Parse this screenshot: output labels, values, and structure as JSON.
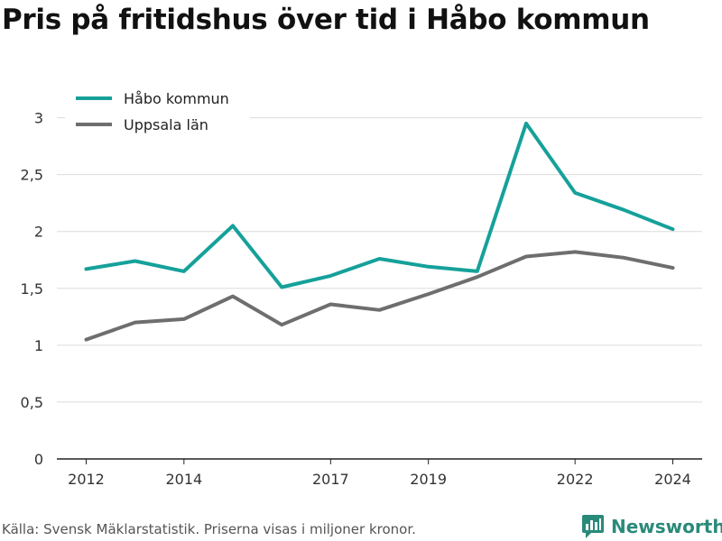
{
  "title": "Pris på fritidshus över tid i Håbo kommun",
  "source_note": "Källa: Svensk Mäklarstatistik. Priserna visas i miljoner kronor.",
  "brand": {
    "name": "Newsworthy",
    "icon": "newsworthy-bar-chart-logo-icon"
  },
  "chart_data": {
    "type": "line",
    "title": "Pris på fritidshus över tid i Håbo kommun",
    "xlabel": "",
    "ylabel": "",
    "x": [
      2012,
      2013,
      2014,
      2015,
      2016,
      2017,
      2018,
      2019,
      2020,
      2021,
      2022,
      2023,
      2024
    ],
    "x_tick_values": [
      2012,
      2014,
      2017,
      2019,
      2022,
      2024
    ],
    "x_tick_labels": [
      "2012",
      "2014",
      "2017",
      "2019",
      "2022",
      "2024"
    ],
    "xlim": [
      2011.4,
      2024.6
    ],
    "y_tick_values": [
      0,
      0.5,
      1,
      1.5,
      2,
      2.5,
      3
    ],
    "y_tick_labels": [
      "0",
      "0,5",
      "1",
      "1,5",
      "2",
      "2,5",
      "3"
    ],
    "ylim": [
      0,
      3.1
    ],
    "grid": "horizontal",
    "legend_position": "top-left",
    "series": [
      {
        "name": "Håbo kommun",
        "color": "#15a19a",
        "values": [
          1.67,
          1.74,
          1.65,
          2.05,
          1.51,
          1.61,
          1.76,
          1.69,
          1.65,
          2.95,
          2.34,
          2.19,
          2.02
        ]
      },
      {
        "name": "Uppsala län",
        "color": "#6e6e6e",
        "values": [
          1.05,
          1.2,
          1.23,
          1.43,
          1.18,
          1.36,
          1.31,
          1.45,
          1.6,
          1.78,
          1.82,
          1.77,
          1.68
        ]
      }
    ]
  }
}
